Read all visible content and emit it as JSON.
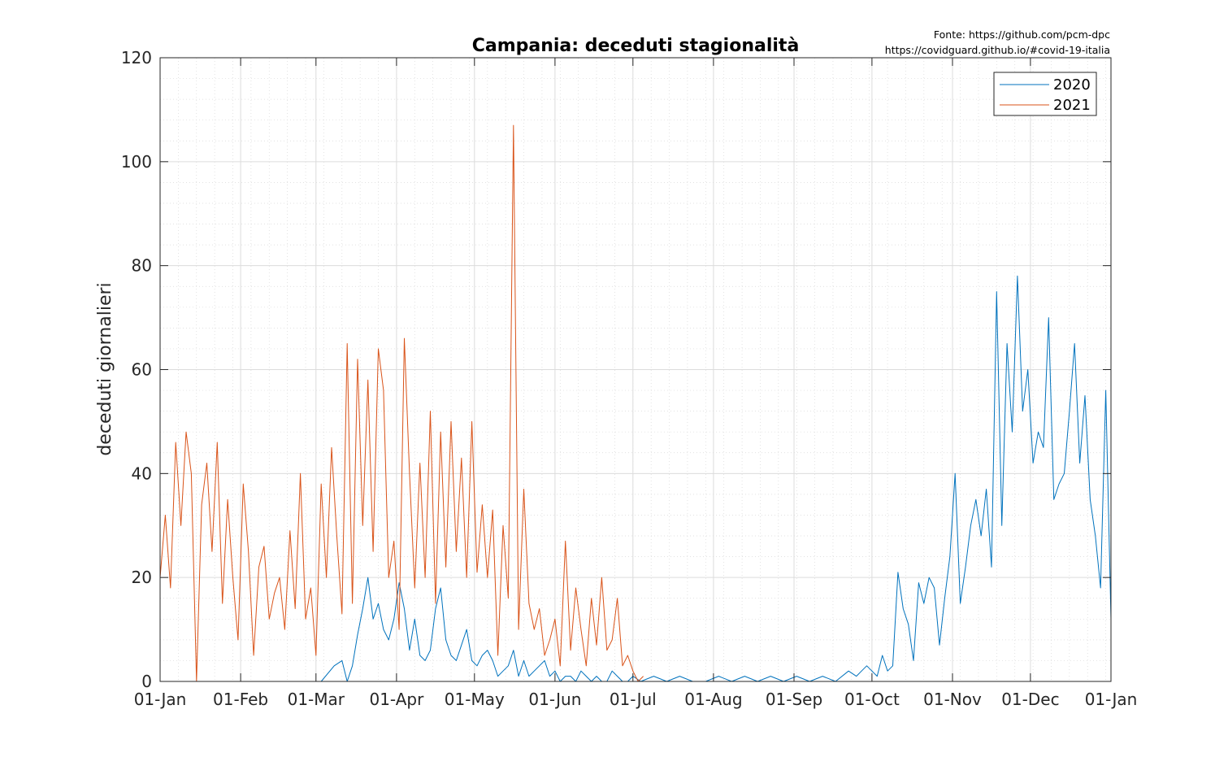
{
  "source": {
    "line1": "Fonte: https://github.com/pcm-dpc",
    "line2": "https://covidguard.github.io/#covid-19-italia"
  },
  "chart_data": {
    "type": "line",
    "title": "Campania: deceduti stagionalità",
    "xlabel": "",
    "ylabel": "deceduti giornalieri",
    "x_tick_labels": [
      "01-Jan",
      "01-Feb",
      "01-Mar",
      "01-Apr",
      "01-May",
      "01-Jun",
      "01-Jul",
      "01-Aug",
      "01-Sep",
      "01-Oct",
      "01-Nov",
      "01-Dec",
      "01-Jan"
    ],
    "x_tick_days": [
      0,
      31,
      60,
      91,
      121,
      152,
      182,
      213,
      244,
      274,
      305,
      335,
      366
    ],
    "xlim_days": [
      0,
      366
    ],
    "ylim": [
      0,
      120
    ],
    "y_ticks": [
      0,
      20,
      40,
      60,
      80,
      100,
      120
    ],
    "grid": true,
    "minor_grid": true,
    "legend_position": "top-right",
    "series": [
      {
        "name": "2020",
        "color": "#0072BD",
        "x_days": [
          54,
          62,
          67,
          70,
          72,
          74,
          76,
          78,
          80,
          82,
          84,
          86,
          88,
          90,
          92,
          94,
          96,
          98,
          100,
          102,
          104,
          106,
          108,
          110,
          112,
          114,
          116,
          118,
          120,
          122,
          124,
          126,
          128,
          130,
          132,
          134,
          136,
          138,
          140,
          142,
          144,
          146,
          148,
          150,
          152,
          154,
          156,
          158,
          160,
          162,
          164,
          166,
          168,
          170,
          172,
          174,
          176,
          178,
          180,
          182,
          185,
          190,
          195,
          200,
          205,
          210,
          215,
          220,
          225,
          230,
          235,
          240,
          245,
          250,
          255,
          260,
          265,
          268,
          270,
          272,
          274,
          276,
          278,
          280,
          282,
          284,
          286,
          288,
          290,
          292,
          294,
          296,
          298,
          300,
          302,
          304,
          306,
          308,
          310,
          312,
          314,
          316,
          318,
          320,
          322,
          324,
          326,
          328,
          330,
          332,
          334,
          336,
          338,
          340,
          342,
          344,
          346,
          348,
          350,
          352,
          354,
          356,
          358,
          360,
          362,
          364,
          366
        ],
        "values": [
          0,
          0,
          3,
          4,
          0,
          3,
          9,
          14,
          20,
          12,
          15,
          10,
          8,
          12,
          19,
          14,
          6,
          12,
          5,
          4,
          6,
          14,
          18,
          8,
          5,
          4,
          7,
          10,
          4,
          3,
          5,
          6,
          4,
          1,
          2,
          3,
          6,
          1,
          4,
          1,
          2,
          3,
          4,
          1,
          2,
          0,
          1,
          1,
          0,
          2,
          1,
          0,
          1,
          0,
          0,
          2,
          1,
          0,
          0,
          1,
          0,
          1,
          0,
          1,
          0,
          0,
          1,
          0,
          1,
          0,
          1,
          0,
          1,
          0,
          1,
          0,
          2,
          1,
          2,
          3,
          2,
          1,
          5,
          2,
          3,
          21,
          14,
          11,
          4,
          19,
          15,
          20,
          18,
          7,
          16,
          24,
          40,
          15,
          22,
          30,
          35,
          28,
          37,
          22,
          75,
          30,
          65,
          48,
          78,
          52,
          60,
          42,
          48,
          45,
          70,
          35,
          38,
          40,
          52,
          65,
          42,
          55,
          35,
          28,
          18,
          56,
          12
        ],
        "note": ""
      },
      {
        "name": "2021",
        "color": "#D95319",
        "x_days": [
          0,
          2,
          4,
          6,
          8,
          10,
          12,
          14,
          16,
          18,
          20,
          22,
          24,
          26,
          28,
          30,
          32,
          34,
          36,
          38,
          40,
          42,
          44,
          46,
          48,
          50,
          52,
          54,
          56,
          58,
          60,
          62,
          64,
          66,
          68,
          70,
          72,
          74,
          76,
          78,
          80,
          82,
          84,
          86,
          88,
          90,
          92,
          94,
          96,
          98,
          100,
          102,
          104,
          106,
          108,
          110,
          112,
          114,
          116,
          118,
          120,
          122,
          124,
          126,
          128,
          130,
          132,
          134,
          136,
          138,
          140,
          142,
          144,
          146,
          148,
          150,
          152,
          154,
          156,
          158,
          160,
          162,
          164,
          166,
          168,
          170,
          172,
          174,
          176,
          178,
          180,
          182,
          184,
          186
        ],
        "values": [
          20,
          32,
          18,
          46,
          30,
          48,
          40,
          0,
          34,
          42,
          25,
          46,
          15,
          35,
          20,
          8,
          38,
          25,
          5,
          22,
          26,
          12,
          17,
          20,
          10,
          29,
          14,
          40,
          12,
          18,
          5,
          38,
          20,
          45,
          28,
          13,
          65,
          15,
          62,
          30,
          58,
          25,
          64,
          56,
          20,
          27,
          10,
          66,
          40,
          18,
          42,
          20,
          52,
          15,
          48,
          22,
          50,
          25,
          43,
          20,
          50,
          21,
          34,
          20,
          33,
          5,
          30,
          16,
          107,
          10,
          37,
          15,
          10,
          14,
          5,
          8,
          12,
          3,
          27,
          6,
          18,
          10,
          3,
          16,
          7,
          20,
          6,
          8,
          16,
          3,
          5,
          2,
          0,
          1
        ]
      }
    ]
  }
}
